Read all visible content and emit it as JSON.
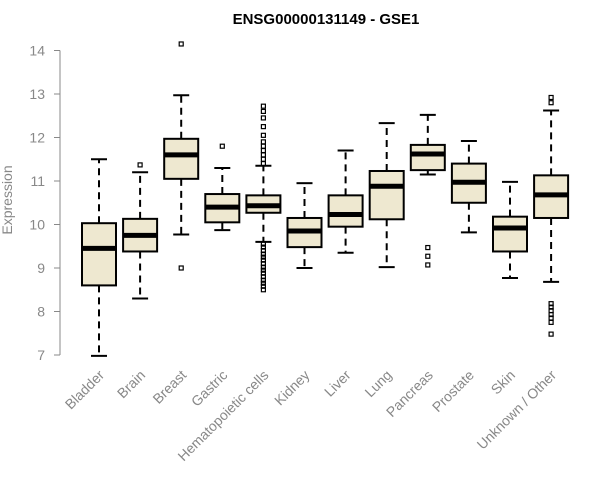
{
  "chart_data": {
    "type": "boxplot",
    "title": "ENSG00000131149 - GSE1",
    "xlabel": "",
    "ylabel": "Expression",
    "ylim": [
      7,
      14
    ],
    "yticks": [
      7,
      8,
      9,
      10,
      11,
      12,
      13,
      14
    ],
    "grid": false,
    "legend": "none",
    "colors": {
      "box_fill": "#EEE8D0",
      "stroke": "#000000",
      "axis": "#888888"
    },
    "categories": [
      "Bladder",
      "Brain",
      "Breast",
      "Gastric",
      "Hematopoietic cells",
      "Kidney",
      "Liver",
      "Lung",
      "Pancreas",
      "Prostate",
      "Skin",
      "Unknown / Other"
    ],
    "boxes": [
      {
        "category": "Bladder",
        "whisker_low": 6.98,
        "q1": 8.6,
        "median": 9.45,
        "q3": 10.03,
        "whisker_high": 11.5,
        "outliers": []
      },
      {
        "category": "Brain",
        "whisker_low": 8.3,
        "q1": 9.38,
        "median": 9.75,
        "q3": 10.13,
        "whisker_high": 11.2,
        "outliers": [
          11.37
        ]
      },
      {
        "category": "Breast",
        "whisker_low": 9.77,
        "q1": 11.05,
        "median": 11.6,
        "q3": 11.97,
        "whisker_high": 12.97,
        "outliers": [
          9.0,
          14.15
        ]
      },
      {
        "category": "Gastric",
        "whisker_low": 9.87,
        "q1": 10.05,
        "median": 10.4,
        "q3": 10.7,
        "whisker_high": 11.3,
        "outliers": [
          11.8
        ]
      },
      {
        "category": "Hematopoietic cells",
        "whisker_low": 9.6,
        "q1": 10.27,
        "median": 10.43,
        "q3": 10.67,
        "whisker_high": 11.35,
        "outliers": [
          8.5,
          8.58,
          8.65,
          8.72,
          8.8,
          8.88,
          8.95,
          9.02,
          9.1,
          9.18,
          9.25,
          9.32,
          9.4,
          9.48,
          9.55,
          11.4,
          11.5,
          11.6,
          11.7,
          11.8,
          11.9,
          12.05,
          12.25,
          12.45,
          12.6,
          12.72
        ]
      },
      {
        "category": "Kidney",
        "whisker_low": 9.0,
        "q1": 9.48,
        "median": 9.85,
        "q3": 10.15,
        "whisker_high": 10.95,
        "outliers": []
      },
      {
        "category": "Liver",
        "whisker_low": 9.35,
        "q1": 9.95,
        "median": 10.23,
        "q3": 10.67,
        "whisker_high": 11.7,
        "outliers": []
      },
      {
        "category": "Lung",
        "whisker_low": 9.02,
        "q1": 10.12,
        "median": 10.88,
        "q3": 11.23,
        "whisker_high": 12.33,
        "outliers": []
      },
      {
        "category": "Pancreas",
        "whisker_low": 11.15,
        "q1": 11.25,
        "median": 11.62,
        "q3": 11.83,
        "whisker_high": 12.52,
        "outliers": [
          9.07,
          9.27,
          9.47
        ]
      },
      {
        "category": "Prostate",
        "whisker_low": 9.82,
        "q1": 10.5,
        "median": 10.97,
        "q3": 11.4,
        "whisker_high": 11.92,
        "outliers": []
      },
      {
        "category": "Skin",
        "whisker_low": 8.77,
        "q1": 9.38,
        "median": 9.92,
        "q3": 10.18,
        "whisker_high": 10.98,
        "outliers": []
      },
      {
        "category": "Unknown / Other",
        "whisker_low": 8.68,
        "q1": 10.15,
        "median": 10.68,
        "q3": 11.13,
        "whisker_high": 12.62,
        "outliers": [
          7.48,
          7.75,
          7.85,
          7.93,
          8.02,
          8.1,
          8.18,
          12.8,
          12.92
        ]
      }
    ]
  }
}
